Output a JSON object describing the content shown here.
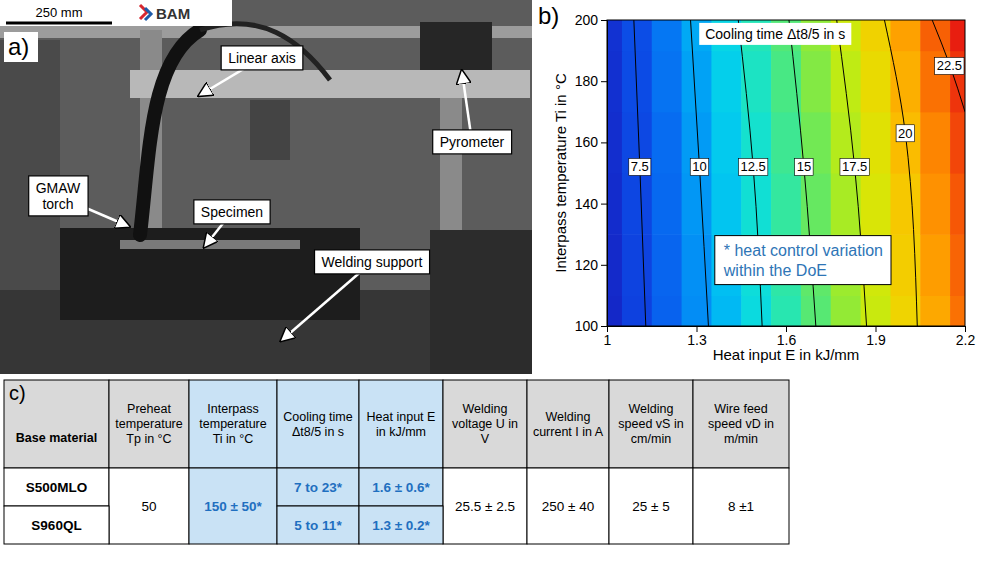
{
  "photo": {
    "label": "a)",
    "scale_bar": "250 mm",
    "logo": "BAM",
    "callouts": [
      "Linear axis",
      "GMAW torch",
      "Specimen",
      "Pyrometer",
      "Welding support"
    ]
  },
  "chart_data": {
    "type": "contour",
    "panel_label": "b)",
    "annotations": [
      "Cooling time Δt8/5 in s",
      "* heat control variation within the DoE"
    ],
    "xlabel": "Heat input E in kJ/mm",
    "ylabel": "Interpass temperature Ti in °C",
    "xlim": [
      1,
      2.2
    ],
    "xticks": [
      1,
      1.3,
      1.6,
      1.9,
      2.2
    ],
    "ylim": [
      100,
      200
    ],
    "yticks": [
      100,
      120,
      140,
      160,
      180,
      200
    ],
    "heatmap": {
      "x": [
        1.0,
        1.1,
        1.2,
        1.3,
        1.4,
        1.5,
        1.6,
        1.7,
        1.8,
        1.9,
        2.0,
        2.1,
        2.2
      ],
      "y": [
        100,
        120,
        140,
        160,
        180,
        200
      ],
      "values": [
        [
          5.9,
          7.1,
          8.3,
          9.5,
          10.8,
          12.2,
          13.6,
          15.0,
          16.5,
          17.9,
          19.4,
          20.9,
          22.3
        ],
        [
          6.0,
          7.2,
          8.4,
          9.6,
          11.0,
          12.4,
          13.8,
          15.2,
          16.7,
          18.1,
          19.7,
          21.2,
          22.6
        ],
        [
          6.1,
          7.3,
          8.5,
          9.8,
          11.2,
          12.6,
          14.0,
          15.4,
          17.0,
          18.4,
          19.9,
          21.5,
          22.9
        ],
        [
          6.2,
          7.4,
          8.6,
          9.9,
          11.4,
          12.8,
          14.3,
          15.7,
          17.3,
          18.7,
          20.3,
          21.8,
          23.3
        ],
        [
          6.3,
          7.5,
          8.8,
          10.1,
          11.6,
          13.1,
          14.6,
          16.1,
          17.6,
          19.1,
          20.7,
          22.3,
          23.7
        ],
        [
          6.4,
          7.6,
          8.9,
          10.3,
          11.9,
          13.4,
          14.9,
          16.4,
          18.0,
          19.5,
          21.1,
          22.7,
          24.2
        ]
      ]
    },
    "contours": [
      {
        "level": 7.5,
        "x": [
          1.13,
          1.11,
          1.09
        ],
        "y": [
          100,
          152,
          200
        ]
      },
      {
        "level": 10,
        "x": [
          1.34,
          1.31,
          1.28
        ],
        "y": [
          100,
          152,
          200
        ]
      },
      {
        "level": 12.5,
        "x": [
          1.52,
          1.49,
          1.44
        ],
        "y": [
          100,
          152,
          200
        ]
      },
      {
        "level": 15,
        "x": [
          1.7,
          1.66,
          1.61
        ],
        "y": [
          100,
          152,
          200
        ]
      },
      {
        "level": 17.5,
        "x": [
          1.87,
          1.83,
          1.77
        ],
        "y": [
          100,
          152,
          200
        ]
      },
      {
        "level": 20,
        "x": [
          2.04,
          2.0,
          1.93
        ],
        "y": [
          100,
          163,
          200
        ]
      },
      {
        "level": 22.5,
        "x": [
          2.2,
          2.15,
          2.09
        ],
        "y": [
          170,
          185,
          200
        ]
      }
    ]
  },
  "table": {
    "label": "c)",
    "header": [
      "Base material",
      "Preheat temperature Tp in °C",
      "Interpass temperature Ti in °C",
      "Cooling time Δt8/5 in s",
      "Heat input E in kJ/mm",
      "Welding voltage U in V",
      "Welding current I in A",
      "Welding speed vS in cm/min",
      "Wire feed speed vD in m/min"
    ],
    "rows": [
      [
        "S500MLO",
        "50",
        "150 ± 50*",
        "7 to 23*",
        "1.6 ± 0.6*",
        "25.5 ± 2.5",
        "250 ± 40",
        "25 ± 5",
        "8 ±1"
      ],
      [
        "S960QL",
        null,
        null,
        "5 to 11*",
        "1.3 ± 0.2*",
        null,
        null,
        null,
        null
      ]
    ]
  }
}
